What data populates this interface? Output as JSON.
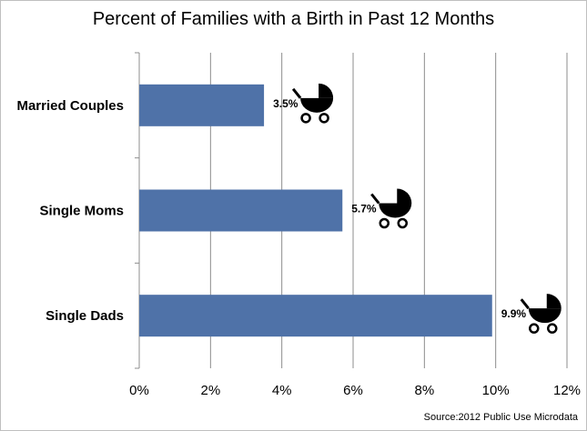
{
  "chart_data": {
    "type": "bar",
    "orientation": "horizontal",
    "title": "Percent of Families with a Birth in Past 12 Months",
    "categories": [
      "Married Couples",
      "Single Moms",
      "Single Dads"
    ],
    "values": [
      3.5,
      5.7,
      9.9
    ],
    "data_labels": [
      "3.5%",
      "5.7%",
      "9.9%"
    ],
    "xlim": [
      0,
      12
    ],
    "xticks": [
      0,
      2,
      4,
      6,
      8,
      10,
      12
    ],
    "xtick_labels": [
      "0%",
      "2%",
      "4%",
      "6%",
      "8%",
      "10%",
      "12%"
    ],
    "xlabel": "",
    "ylabel": "",
    "grid": "vertical",
    "legend": "none",
    "bar_color": "#4f72a8",
    "marker_icon": "baby-carriage-icon",
    "source": "Source:2012 Public Use Microdata"
  }
}
